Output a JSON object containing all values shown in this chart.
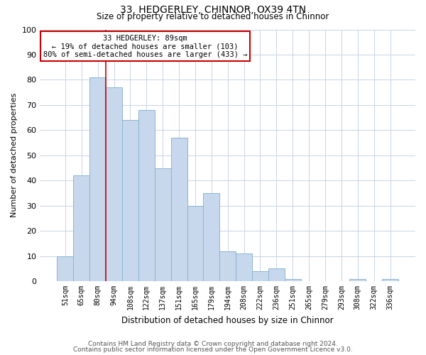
{
  "title": "33, HEDGERLEY, CHINNOR, OX39 4TN",
  "subtitle": "Size of property relative to detached houses in Chinnor",
  "xlabel": "Distribution of detached houses by size in Chinnor",
  "ylabel": "Number of detached properties",
  "bin_labels": [
    "51sqm",
    "65sqm",
    "80sqm",
    "94sqm",
    "108sqm",
    "122sqm",
    "137sqm",
    "151sqm",
    "165sqm",
    "179sqm",
    "194sqm",
    "208sqm",
    "222sqm",
    "236sqm",
    "251sqm",
    "265sqm",
    "279sqm",
    "293sqm",
    "308sqm",
    "322sqm",
    "336sqm"
  ],
  "bar_values": [
    10,
    42,
    81,
    77,
    64,
    68,
    45,
    57,
    30,
    35,
    12,
    11,
    4,
    5,
    1,
    0,
    0,
    0,
    1,
    0,
    1
  ],
  "bar_color": "#c8d8ec",
  "bar_edge_color": "#8ab4d4",
  "vline_x_index": 2.5,
  "vline_color": "#cc0000",
  "annotation_title": "33 HEDGERLEY: 89sqm",
  "annotation_line1": "← 19% of detached houses are smaller (103)",
  "annotation_line2": "80% of semi-detached houses are larger (433) →",
  "annotation_box_color": "#ffffff",
  "annotation_border_color": "#cc0000",
  "ylim": [
    0,
    100
  ],
  "yticks": [
    0,
    10,
    20,
    30,
    40,
    50,
    60,
    70,
    80,
    90,
    100
  ],
  "footnote1": "Contains HM Land Registry data © Crown copyright and database right 2024.",
  "footnote2": "Contains public sector information licensed under the Open Government Licence v3.0.",
  "background_color": "#ffffff",
  "grid_color": "#c8d4e4"
}
